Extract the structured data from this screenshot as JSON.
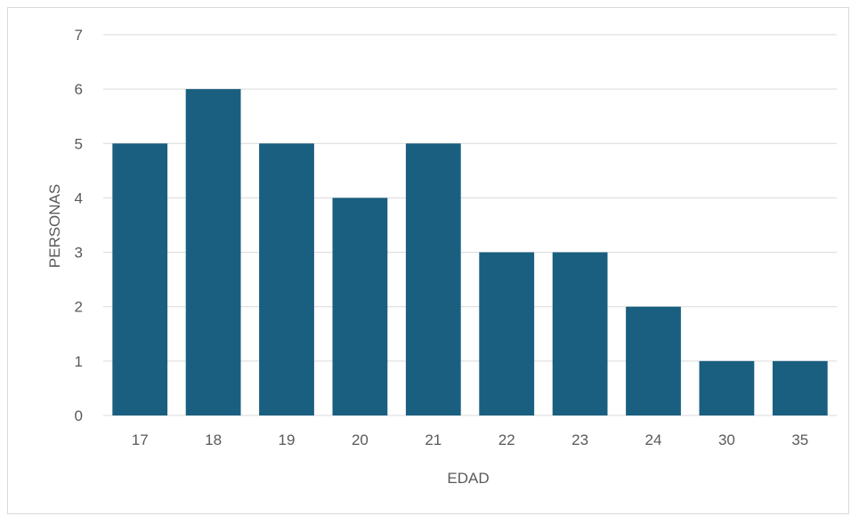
{
  "chart_data": {
    "type": "bar",
    "categories": [
      "17",
      "18",
      "19",
      "20",
      "21",
      "22",
      "23",
      "24",
      "30",
      "35"
    ],
    "values": [
      5,
      6,
      5,
      4,
      5,
      3,
      3,
      2,
      1,
      1
    ],
    "xlabel": "EDAD",
    "ylabel": "PERSONAS",
    "ylim": [
      0,
      7
    ],
    "yticks": [
      0,
      1,
      2,
      3,
      4,
      5,
      6,
      7
    ],
    "grid": true,
    "bar_color": "#1a5f80",
    "grid_color": "#d9d9d9"
  }
}
